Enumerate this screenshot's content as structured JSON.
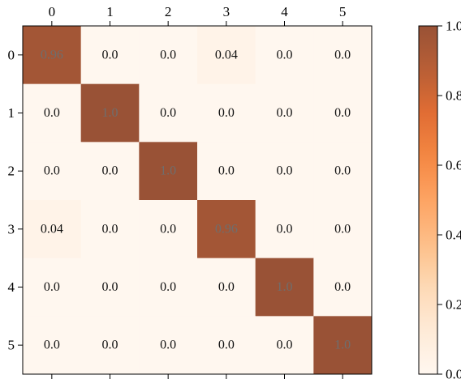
{
  "chart_data": {
    "type": "heatmap",
    "title": "",
    "xlabel": "",
    "ylabel": "",
    "x_categories": [
      "0",
      "1",
      "2",
      "3",
      "4",
      "5"
    ],
    "y_categories": [
      "0",
      "1",
      "2",
      "3",
      "4",
      "5"
    ],
    "x_axis_position": "top",
    "values": [
      [
        0.96,
        0.0,
        0.0,
        0.04,
        0.0,
        0.0
      ],
      [
        0.0,
        1.0,
        0.0,
        0.0,
        0.0,
        0.0
      ],
      [
        0.0,
        0.0,
        1.0,
        0.0,
        0.0,
        0.0
      ],
      [
        0.04,
        0.0,
        0.0,
        0.96,
        0.0,
        0.0
      ],
      [
        0.0,
        0.0,
        0.0,
        0.0,
        1.0,
        0.0
      ],
      [
        0.0,
        0.0,
        0.0,
        0.0,
        0.0,
        1.0
      ]
    ],
    "cell_labels": [
      [
        "0.96",
        "0.0",
        "0.0",
        "0.04",
        "0.0",
        "0.0"
      ],
      [
        "0.0",
        "1.0",
        "0.0",
        "0.0",
        "0.0",
        "0.0"
      ],
      [
        "0.0",
        "0.0",
        "1.0",
        "0.0",
        "0.0",
        "0.0"
      ],
      [
        "0.04",
        "0.0",
        "0.0",
        "0.96",
        "0.0",
        "0.0"
      ],
      [
        "0.0",
        "0.0",
        "0.0",
        "0.0",
        "1.0",
        "0.0"
      ],
      [
        "0.0",
        "0.0",
        "0.0",
        "0.0",
        "0.0",
        "1.0"
      ]
    ],
    "colorbar": {
      "range": [
        0.0,
        1.0
      ],
      "ticks": [
        0.0,
        0.2,
        0.4,
        0.6,
        0.8,
        1.0
      ],
      "tick_labels": [
        "0.0",
        "0.2",
        "0.4",
        "0.6",
        "0.8",
        "1.0"
      ],
      "colormap": "Oranges",
      "colors": [
        "#fff5eb",
        "#fee6ce",
        "#fdd0a2",
        "#fdae6b",
        "#fd8d3c",
        "#f16913",
        "#d94801",
        "#a63603",
        "#7f2704"
      ]
    },
    "grid": false,
    "cell_alpha": 0.8
  }
}
